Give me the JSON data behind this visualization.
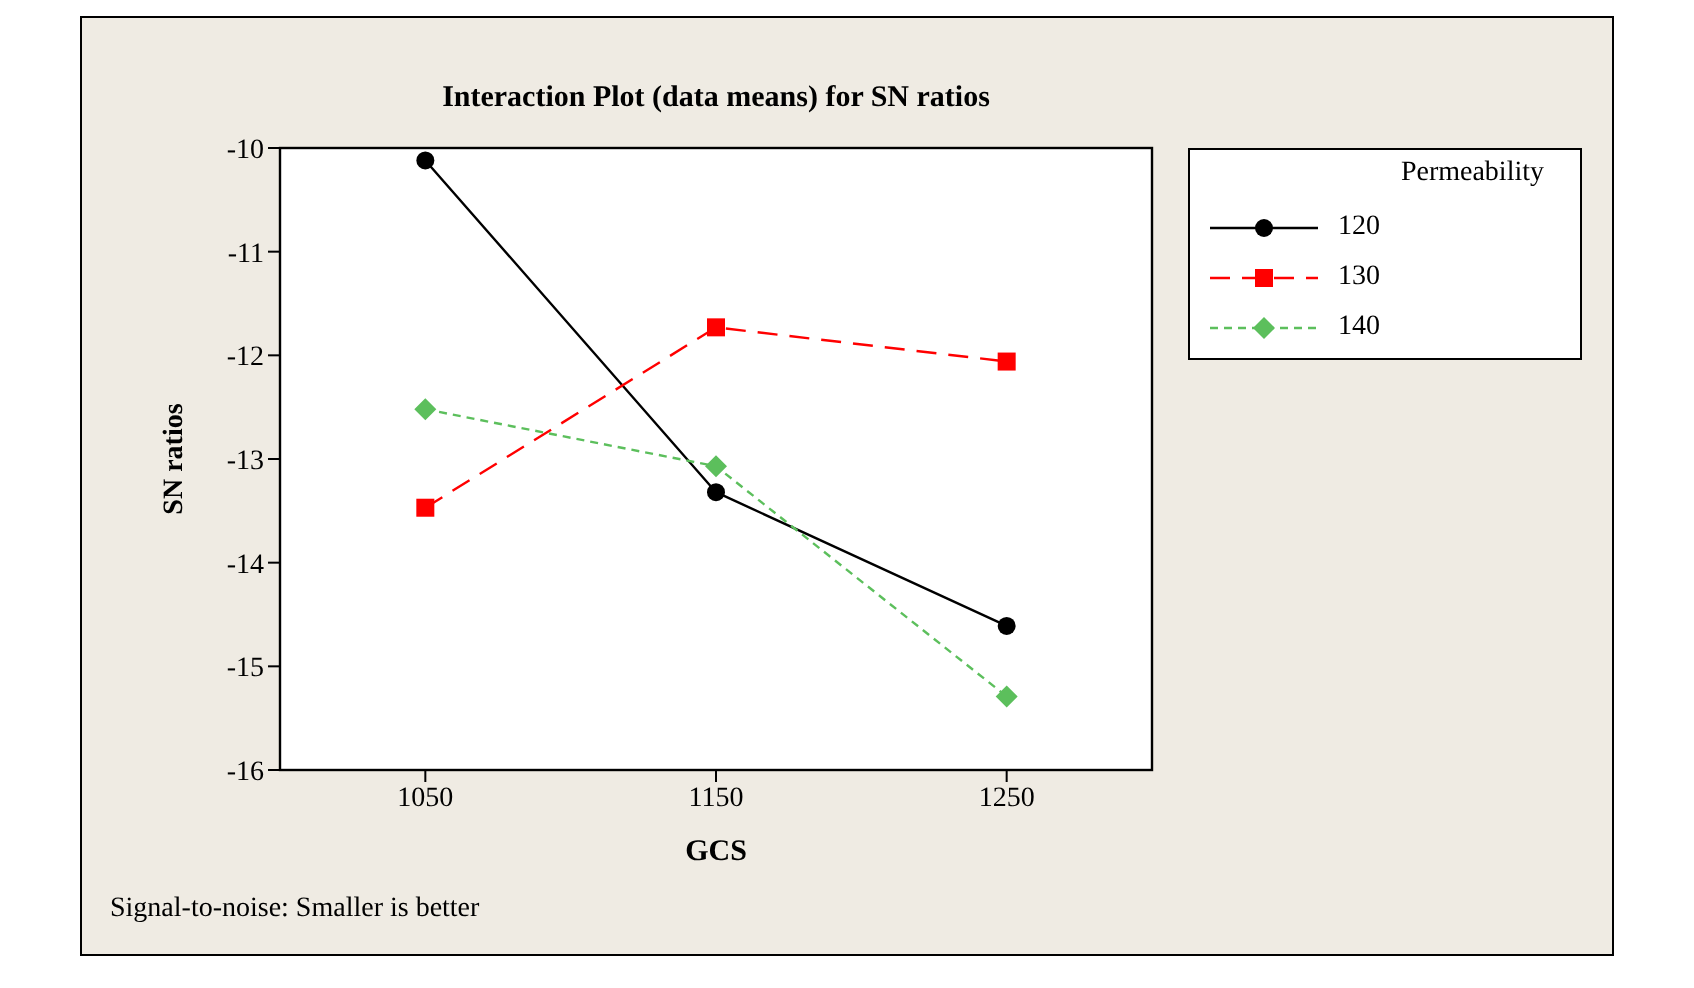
{
  "chart_data": {
    "type": "line",
    "title": "Interaction Plot (data means) for SN ratios",
    "xlabel": "GCS",
    "ylabel": "SN ratios",
    "legend_title": "Permeability",
    "legend": "right",
    "x": [
      1050,
      1150,
      1250
    ],
    "xlim": [
      1000,
      1300
    ],
    "xticks": [
      1050,
      1150,
      1250
    ],
    "ylim": [
      -16,
      -10
    ],
    "yticks": [
      -16,
      -15,
      -14,
      -13,
      -12,
      -11,
      -10
    ],
    "series": [
      {
        "name": "120",
        "color": "#000000",
        "marker": "circle",
        "line_style": "solid",
        "values": [
          -10.12,
          -13.32,
          -14.61
        ]
      },
      {
        "name": "130",
        "color": "#ff0000",
        "marker": "square",
        "line_style": "dashed",
        "values": [
          -13.47,
          -11.73,
          -12.06
        ]
      },
      {
        "name": "140",
        "color": "#5cbf5c",
        "marker": "diamond",
        "line_style": "dotted",
        "values": [
          -12.52,
          -13.07,
          -15.29
        ]
      }
    ],
    "annotations": [
      "Signal-to-noise: Smaller is better"
    ]
  }
}
